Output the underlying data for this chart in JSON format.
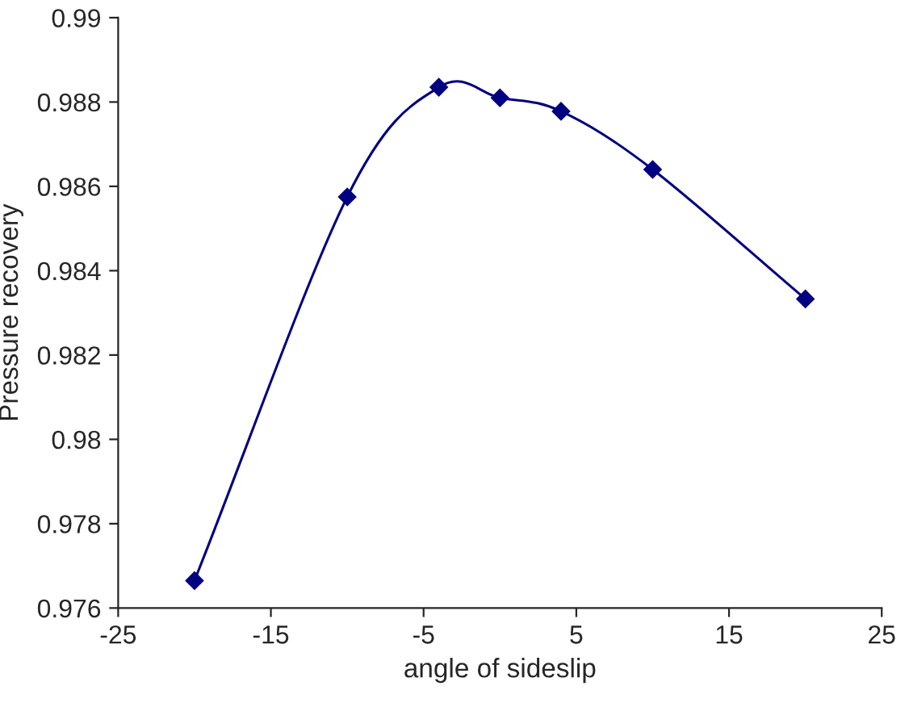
{
  "chart_data": {
    "type": "line",
    "xlabel": "angle of sideslip",
    "ylabel": "Pressure recovery",
    "x": [
      -20,
      -10,
      -4,
      0,
      4,
      10,
      20
    ],
    "series": [
      {
        "color": "#000080",
        "values": [
          0.97665,
          0.98575,
          0.98835,
          0.9881,
          0.98778,
          0.9864,
          0.98333
        ]
      }
    ],
    "marker": "diamond",
    "line_style": "solid",
    "grid": false,
    "legend": false,
    "xlim": [
      -25,
      25
    ],
    "xticks": [
      -25,
      -15,
      -5,
      5,
      15,
      25
    ],
    "ylim": [
      0.976,
      0.99
    ],
    "yticks": [
      0.976,
      0.978,
      0.98,
      0.982,
      0.984,
      0.986,
      0.988,
      0.99
    ]
  }
}
